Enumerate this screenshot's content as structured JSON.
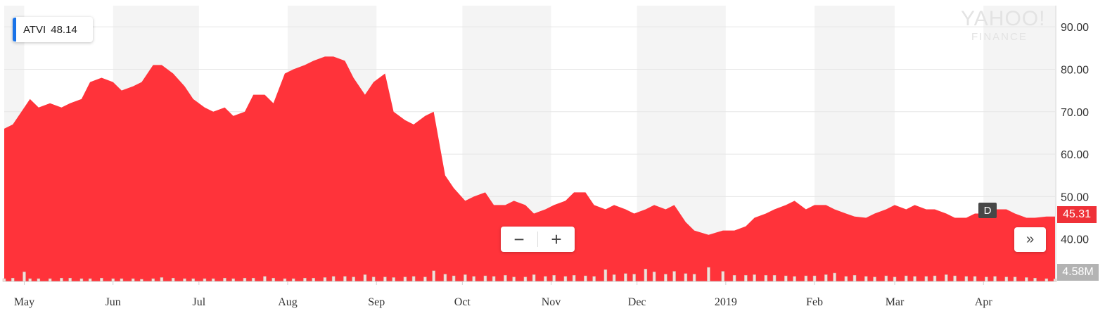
{
  "legend": {
    "symbol": "ATVI",
    "value": "48.14",
    "color": "#1a73e8"
  },
  "watermark": {
    "line1": "YAHOO!",
    "line2": "FINANCE"
  },
  "controls": {
    "zoom_out": "−",
    "zoom_in": "+",
    "expand": "»"
  },
  "dividend_marker": {
    "label": "D"
  },
  "price_badge": {
    "label": "45.31",
    "color": "#ef3138"
  },
  "volume_badge": {
    "label": "4.58M"
  },
  "colors": {
    "area": "#ff333a",
    "band": "#f4f4f4",
    "volume_bar": "#f1e1da",
    "grid": "#e6e6e6"
  },
  "chart_data": {
    "type": "area",
    "symbol": "ATVI",
    "y_ticks": [
      "90.00",
      "80.00",
      "70.00",
      "60.00",
      "50.00",
      "40.00"
    ],
    "y_tick_values": [
      90,
      80,
      70,
      60,
      50,
      40
    ],
    "ylim": [
      30,
      95
    ],
    "x_tick_labels": [
      "May",
      "Jun",
      "Jul",
      "Aug",
      "Sep",
      "Oct",
      "Nov",
      "Dec",
      "2019",
      "Feb",
      "Mar",
      "Apr"
    ],
    "x_tick_dates": [
      "2018-05-01",
      "2018-06-01",
      "2018-07-01",
      "2018-08-01",
      "2018-09-01",
      "2018-10-01",
      "2018-11-01",
      "2018-12-01",
      "2019-01-01",
      "2019-02-01",
      "2019-03-01",
      "2019-04-01"
    ],
    "xlim": [
      "2018-04-24",
      "2019-04-26"
    ],
    "series": [
      {
        "dates": [
          "2018-04-24",
          "2018-04-27",
          "2018-05-01",
          "2018-05-03",
          "2018-05-06",
          "2018-05-10",
          "2018-05-14",
          "2018-05-17",
          "2018-05-21",
          "2018-05-24",
          "2018-05-28",
          "2018-06-01",
          "2018-06-04",
          "2018-06-08",
          "2018-06-11",
          "2018-06-15",
          "2018-06-18",
          "2018-06-22",
          "2018-06-26",
          "2018-06-29",
          "2018-07-03",
          "2018-07-06",
          "2018-07-10",
          "2018-07-13",
          "2018-07-17",
          "2018-07-20",
          "2018-07-24",
          "2018-07-27",
          "2018-07-31",
          "2018-08-03",
          "2018-08-07",
          "2018-08-10",
          "2018-08-14",
          "2018-08-17",
          "2018-08-21",
          "2018-08-24",
          "2018-08-28",
          "2018-08-31",
          "2018-09-04",
          "2018-09-07",
          "2018-09-11",
          "2018-09-14",
          "2018-09-18",
          "2018-09-21",
          "2018-09-25",
          "2018-09-28",
          "2018-10-02",
          "2018-10-05",
          "2018-10-09",
          "2018-10-12",
          "2018-10-16",
          "2018-10-19",
          "2018-10-23",
          "2018-10-26",
          "2018-10-30",
          "2018-11-02",
          "2018-11-06",
          "2018-11-09",
          "2018-11-13",
          "2018-11-16",
          "2018-11-20",
          "2018-11-23",
          "2018-11-27",
          "2018-11-30",
          "2018-12-04",
          "2018-12-07",
          "2018-12-11",
          "2018-12-14",
          "2018-12-18",
          "2018-12-21",
          "2018-12-26",
          "2018-12-31",
          "2019-01-04",
          "2019-01-08",
          "2019-01-11",
          "2019-01-15",
          "2019-01-18",
          "2019-01-22",
          "2019-01-25",
          "2019-01-29",
          "2019-02-01",
          "2019-02-05",
          "2019-02-08",
          "2019-02-12",
          "2019-02-15",
          "2019-02-19",
          "2019-02-22",
          "2019-02-26",
          "2019-03-01",
          "2019-03-05",
          "2019-03-08",
          "2019-03-12",
          "2019-03-15",
          "2019-03-19",
          "2019-03-22",
          "2019-03-26",
          "2019-03-29",
          "2019-04-02",
          "2019-04-05",
          "2019-04-09",
          "2019-04-12",
          "2019-04-16",
          "2019-04-19",
          "2019-04-23",
          "2019-04-26"
        ],
        "close": [
          66,
          67,
          71,
          73,
          71,
          72,
          71,
          72,
          73,
          77,
          78,
          77,
          75,
          76,
          77,
          81,
          81,
          79,
          76,
          73,
          71,
          70,
          71,
          69,
          70,
          74,
          74,
          72,
          79,
          80,
          81,
          82,
          83,
          83,
          82,
          78,
          74,
          77,
          79,
          70,
          68,
          67,
          69,
          70,
          55,
          52,
          49,
          50,
          51,
          48,
          48,
          49,
          48,
          46,
          47,
          48,
          49,
          51,
          51,
          48,
          47,
          48,
          47,
          46,
          47,
          48,
          47,
          48,
          44,
          42,
          41,
          42,
          42,
          43,
          45,
          46,
          47,
          48,
          49,
          47,
          48,
          48,
          47,
          46,
          45.31,
          45,
          46,
          47,
          48,
          47,
          48,
          47,
          47,
          46,
          45,
          45,
          46,
          46,
          47,
          47,
          46,
          45,
          45,
          45.31,
          45.31
        ],
        "volume_m": [
          5,
          6,
          17,
          5,
          5,
          5,
          6,
          6,
          5,
          5,
          6,
          5,
          5,
          5,
          4,
          5,
          7,
          6,
          5,
          5,
          5,
          5,
          6,
          5,
          6,
          6,
          9,
          6,
          5,
          5,
          6,
          6,
          7,
          9,
          9,
          8,
          12,
          8,
          8,
          7,
          8,
          9,
          8,
          19,
          13,
          10,
          12,
          9,
          10,
          9,
          11,
          8,
          8,
          12,
          9,
          11,
          9,
          11,
          10,
          9,
          21,
          12,
          14,
          13,
          22,
          17,
          13,
          18,
          14,
          13,
          25,
          18,
          11,
          11,
          12,
          11,
          11,
          10,
          9,
          10,
          10,
          12,
          15,
          9,
          11,
          9,
          8,
          10,
          8,
          10,
          9,
          9,
          10,
          12,
          10,
          9,
          9,
          8,
          9,
          8,
          8,
          7,
          6,
          5,
          4.58
        ]
      }
    ],
    "volume_max_m": 60
  }
}
